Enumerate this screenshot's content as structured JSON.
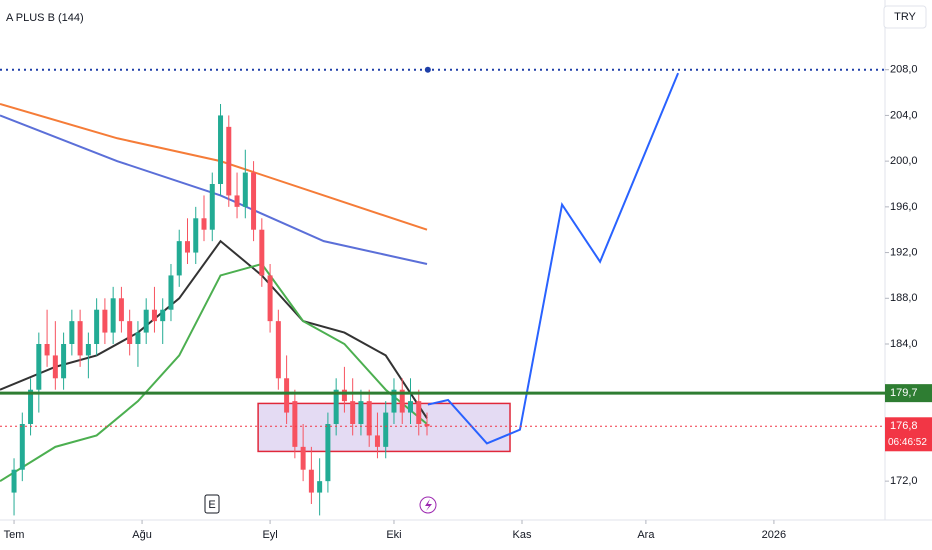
{
  "chart_data": {
    "type": "candlestick",
    "title": "A PLUS B (144)",
    "currency": "TRY",
    "xlim": [
      -3.4,
      210.9
    ],
    "ylim": [
      168.6,
      214.1
    ],
    "xticks": [
      {
        "value": 0,
        "label": "Tem"
      },
      {
        "value": 31,
        "label": "Ağu"
      },
      {
        "value": 62,
        "label": "Eyl"
      },
      {
        "value": 92,
        "label": "Eki"
      },
      {
        "value": 123,
        "label": "Kas"
      },
      {
        "value": 153,
        "label": "Ara"
      },
      {
        "value": 184,
        "label": "2026"
      }
    ],
    "yticks": [
      {
        "value": 172,
        "label": "172,0"
      },
      {
        "value": 184,
        "label": "184,0"
      },
      {
        "value": 188,
        "label": "188,0"
      },
      {
        "value": 192,
        "label": "192,0"
      },
      {
        "value": 196,
        "label": "196,0"
      },
      {
        "value": 200,
        "label": "200,0"
      },
      {
        "value": 204,
        "label": "204,0"
      },
      {
        "value": 208,
        "label": "208,0"
      }
    ],
    "up_color": "#22ab94",
    "down_color": "#f7525f",
    "x": [
      0,
      2,
      4,
      6,
      8,
      10,
      12,
      14,
      16,
      18,
      20,
      22,
      24,
      26,
      28,
      30,
      32,
      34,
      36,
      38,
      40,
      42,
      44,
      46,
      48,
      50,
      52,
      54,
      56,
      58,
      60,
      62,
      64,
      66,
      68,
      70,
      72,
      74,
      76,
      78,
      80,
      82,
      84,
      86,
      88,
      90,
      92,
      94,
      96,
      98,
      100
    ],
    "open": [
      171,
      173,
      177,
      180,
      184,
      183,
      181,
      184,
      186,
      183,
      184,
      187,
      185,
      188,
      186,
      184,
      185,
      187,
      186,
      187,
      190,
      193,
      192,
      195,
      194,
      198,
      203,
      197,
      196,
      199,
      194,
      190,
      186,
      181,
      179,
      175,
      173,
      171,
      172,
      177,
      180,
      179,
      177,
      179,
      176,
      175,
      178,
      180,
      178,
      179,
      177
    ],
    "high": [
      174,
      178,
      181,
      185,
      187,
      186,
      185,
      187,
      187,
      185,
      188,
      188,
      189,
      189,
      187,
      186,
      188,
      189,
      188,
      191,
      194,
      195,
      196,
      197,
      199,
      205,
      204,
      199,
      201,
      200,
      195,
      191,
      187,
      183,
      180,
      177,
      175,
      174,
      178,
      181,
      182,
      181,
      180,
      180,
      178,
      179,
      181,
      181,
      181,
      180,
      178
    ],
    "low": [
      169,
      172,
      176,
      178,
      182,
      180,
      180,
      183,
      182,
      181,
      183,
      184,
      184,
      185,
      183,
      182,
      184,
      185,
      184,
      186,
      189,
      191,
      191,
      193,
      193,
      197,
      196,
      195,
      195,
      193,
      189,
      185,
      180,
      177,
      174,
      172,
      170,
      169,
      171,
      176,
      178,
      176,
      176,
      175,
      174,
      174,
      177,
      177,
      177,
      176,
      176
    ],
    "close": [
      173,
      177,
      180,
      184,
      183,
      181,
      184,
      186,
      183,
      184,
      187,
      185,
      188,
      186,
      184,
      185,
      187,
      186,
      187,
      190,
      193,
      192,
      195,
      194,
      198,
      204,
      197,
      196,
      199,
      194,
      190,
      186,
      181,
      178,
      175,
      173,
      171,
      172,
      177,
      180,
      179,
      177,
      179,
      176,
      175,
      178,
      180,
      178,
      179,
      177,
      176.8
    ],
    "overlays": [
      {
        "color": "#f57c38",
        "x": [
          -3.4,
          25,
          50,
          75,
          100
        ],
        "values": [
          205,
          202,
          200,
          197,
          194
        ]
      },
      {
        "color": "#5b6fd8",
        "x": [
          -3.4,
          25,
          50,
          75,
          100
        ],
        "values": [
          204,
          200,
          197,
          193,
          191
        ]
      },
      {
        "color": "#333333",
        "x": [
          -3.4,
          10,
          20,
          30,
          40,
          50,
          60,
          70,
          80,
          90,
          100
        ],
        "values": [
          180,
          182,
          183,
          185,
          188,
          193,
          190,
          186,
          185,
          183,
          177.5
        ]
      },
      {
        "color": "#4caf50",
        "x": [
          -3.4,
          10,
          20,
          30,
          40,
          50,
          60,
          70,
          80,
          90,
          100
        ],
        "values": [
          172,
          175,
          176,
          179,
          183,
          190,
          191,
          186,
          184,
          180,
          177
        ]
      }
    ],
    "projection": {
      "color": "#2962ff",
      "x": [
        100.2,
        105.1,
        114.5,
        122.5,
        132.7,
        141.9,
        160.8
      ],
      "values": [
        178.7,
        179.1,
        175.3,
        176.5,
        196.2,
        191.2,
        207.7
      ]
    },
    "zone": {
      "color": "#d8ccee",
      "x": [
        59.1,
        120.1
      ],
      "y": [
        174.6,
        178.8
      ]
    },
    "levels": [
      {
        "value": 208,
        "color": "#1e3fa8"
      },
      {
        "value": 179.7,
        "color": "#2e7d32",
        "label": "179,7"
      },
      {
        "value": 176.8,
        "color": "#f23645",
        "label": "176,8",
        "countdown": "06:46:52"
      }
    ],
    "event_marker": "E"
  }
}
